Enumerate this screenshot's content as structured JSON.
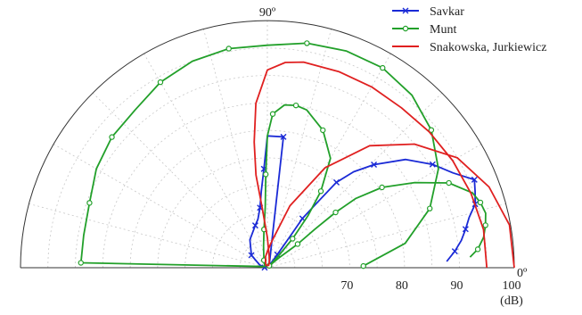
{
  "chart_data": {
    "type": "polar",
    "unit_label": "(dB)",
    "radial_ticks": [
      70,
      80,
      90,
      100
    ],
    "angle_labels": [
      {
        "label": "90º",
        "angle": 90
      },
      {
        "label": "0º",
        "angle": 0
      }
    ],
    "r_range": [
      55,
      100
    ],
    "theta_range": [
      0,
      180
    ],
    "grid": true,
    "legend_position": "top-right",
    "series": [
      {
        "name": "Savkar",
        "color": "#1a2ad6",
        "marker": "x",
        "points": [
          [
            178.2,
            55.5
          ],
          [
            160,
            56.5
          ],
          [
            142,
            58.7
          ],
          [
            122,
            61.0
          ],
          [
            106,
            63.0
          ],
          [
            101,
            64.0
          ],
          [
            97,
            66.0
          ],
          [
            94.5,
            69.0
          ],
          [
            92,
            73.0
          ],
          [
            90,
            79.0
          ],
          [
            83,
            79.0
          ],
          [
            50,
            55.5
          ],
          [
            53,
            58.0
          ],
          [
            54,
            62.0
          ],
          [
            54.5,
            66.0
          ],
          [
            52.5,
            70.0
          ],
          [
            51,
            75.0
          ],
          [
            48,
            78.5
          ],
          [
            44,
            82.0
          ],
          [
            38,
            87.0
          ],
          [
            32,
            90.5
          ],
          [
            27,
            93.0
          ],
          [
            23,
            96.0
          ],
          [
            20,
            95.3
          ],
          [
            17,
            94.6
          ],
          [
            14,
            92.9
          ],
          [
            11,
            91.8
          ],
          [
            8,
            90.7
          ],
          [
            5,
            89.3
          ],
          [
            2,
            87.7
          ]
        ]
      },
      {
        "name": "Munt",
        "color": "#22a02a",
        "marker": "o",
        "points": [
          [
            1,
            72.5
          ],
          [
            10,
            80.5
          ],
          [
            20,
            86.5
          ],
          [
            30,
            91.0
          ],
          [
            40,
            94.0
          ],
          [
            50,
            96.0
          ],
          [
            60,
            97.0
          ],
          [
            70,
            97.0
          ],
          [
            80,
            96.5
          ],
          [
            90,
            95.5
          ],
          [
            100,
            95.5
          ],
          [
            110,
            95.0
          ],
          [
            120,
            94.0
          ],
          [
            130,
            92.5
          ],
          [
            140,
            92.0
          ],
          [
            150,
            91.0
          ],
          [
            160,
            89.5
          ],
          [
            170,
            89.0
          ],
          [
            178.5,
            89.0
          ],
          [
            155,
            55.5
          ],
          [
            115,
            56.5
          ],
          [
            100,
            59.0
          ],
          [
            95,
            62.0
          ],
          [
            92,
            66.0
          ],
          [
            91,
            72.0
          ],
          [
            90,
            79.0
          ],
          [
            88,
            83.0
          ],
          [
            84,
            84.8
          ],
          [
            80,
            85.0
          ],
          [
            76,
            84.6
          ],
          [
            68,
            82.0
          ],
          [
            60,
            78.0
          ],
          [
            55,
            72.0
          ],
          [
            52,
            67.0
          ],
          [
            49,
            62.0
          ],
          [
            47,
            58.0
          ],
          [
            45,
            55.5
          ],
          [
            40,
            58.0
          ],
          [
            38,
            62.0
          ],
          [
            39,
            66.0
          ],
          [
            39,
            71.0
          ],
          [
            38,
            75.5
          ],
          [
            35,
            80.5
          ],
          [
            30,
            86.0
          ],
          [
            25,
            91.5
          ],
          [
            20,
            94.8
          ],
          [
            17,
            95.6
          ],
          [
            14,
            96.0
          ],
          [
            11,
            95.5
          ],
          [
            8,
            94.8
          ],
          [
            5,
            93.5
          ],
          [
            3,
            92.0
          ]
        ]
      },
      {
        "name": "Snakowska, Jurkiewicz",
        "color": "#e02020",
        "marker": "none",
        "points": [
          [
            0,
            100.0
          ],
          [
            10,
            99.8
          ],
          [
            20,
            98.0
          ],
          [
            30,
            95.0
          ],
          [
            40,
            90.0
          ],
          [
            50,
            84.0
          ],
          [
            60,
            76.0
          ],
          [
            70,
            67.0
          ],
          [
            80,
            60.0
          ],
          [
            90,
            58.0
          ],
          [
            100,
            57.0
          ],
          [
            110,
            56.0
          ],
          [
            120,
            55.5
          ],
          [
            60,
            55.5
          ],
          [
            70,
            56.0
          ],
          [
            80,
            57.0
          ],
          [
            90,
            60.5
          ],
          [
            95,
            66.0
          ],
          [
            97,
            72.0
          ],
          [
            96,
            78.0
          ],
          [
            94,
            85.0
          ],
          [
            90,
            91.0
          ],
          [
            85,
            92.5
          ],
          [
            80,
            93.0
          ],
          [
            70,
            93.0
          ],
          [
            60,
            93.0
          ],
          [
            50,
            93.0
          ],
          [
            40,
            93.5
          ],
          [
            30,
            94.0
          ],
          [
            20,
            94.5
          ],
          [
            10,
            95.0
          ],
          [
            0,
            95.0
          ]
        ]
      }
    ]
  }
}
